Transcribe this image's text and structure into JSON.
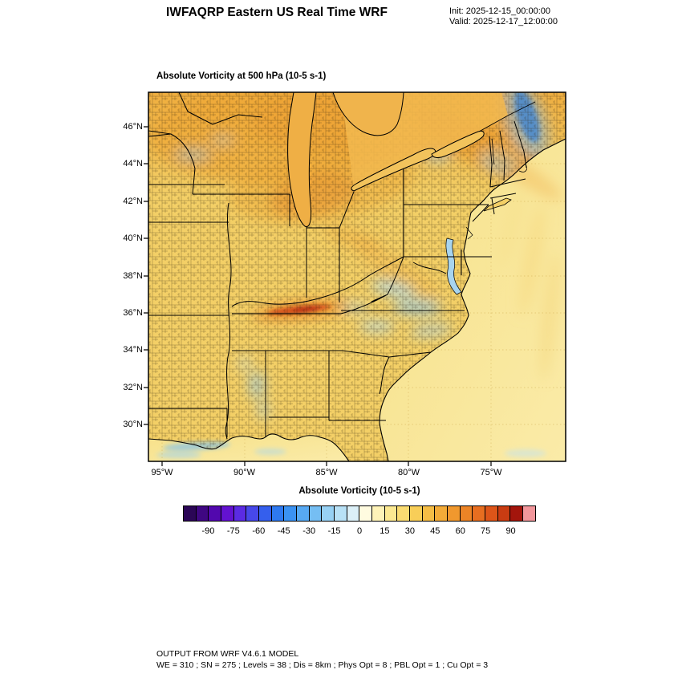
{
  "header": {
    "title": "IWFAQRP Eastern US Real Time WRF",
    "init": "Init: 2025-12-15_00:00:00",
    "valid": "Valid: 2025-12-17_12:00:00"
  },
  "plot": {
    "field_title": "Absolute Vorticity at 500 hPa  (10-5 s-1)",
    "colorbar_title": "Absolute Vorticity  (10-5 s-1)",
    "lat_ticks": [
      "46°N",
      "44°N",
      "42°N",
      "40°N",
      "38°N",
      "36°N",
      "34°N",
      "32°N",
      "30°N"
    ],
    "lon_ticks": [
      "95°W",
      "90°W",
      "85°W",
      "80°W",
      "75°W"
    ]
  },
  "footer": {
    "line1": "OUTPUT FROM WRF V4.6.1 MODEL",
    "line2": "WE = 310 ; SN = 275 ; Levels = 38 ; Dis = 8km ; Phys Opt = 8 ; PBL Opt = 1 ; Cu Opt = 3"
  },
  "chart_data": {
    "type": "heatmap",
    "title": "Absolute Vorticity at 500 hPa",
    "units": "10-5 s-1",
    "region": "Eastern US",
    "x": {
      "label": "longitude",
      "ticks_deg_west": [
        95,
        90,
        85,
        80,
        75
      ]
    },
    "y": {
      "label": "latitude",
      "ticks_deg_north": [
        46,
        44,
        42,
        40,
        38,
        36,
        34,
        32,
        30
      ]
    },
    "model_run": {
      "init": "2025-12-15_00:00:00",
      "valid": "2025-12-17_12:00:00"
    },
    "colorbar": {
      "title": "Absolute Vorticity  (10-5 s-1)",
      "value_min": -105,
      "value_max": 105,
      "interval": 7.5,
      "tick_values": [
        -90,
        -75,
        -60,
        -45,
        -30,
        -15,
        0,
        15,
        30,
        45,
        60,
        75,
        90
      ],
      "tick_labels": [
        "-90",
        "-75",
        "-60",
        "-45",
        "-30",
        "-15",
        "0",
        "15",
        "30",
        "45",
        "60",
        "75",
        "90"
      ],
      "colors": [
        "#2B0656",
        "#3F0782",
        "#5208AE",
        "#6312D1",
        "#5B2BE3",
        "#4748E9",
        "#355FED",
        "#2E79F0",
        "#3B92F2",
        "#57A9F3",
        "#75BEF3",
        "#97D1F4",
        "#B8E1F6",
        "#DCF0F8",
        "#FFFBE0",
        "#FEF3B8",
        "#FCE992",
        "#FADC72",
        "#F8CE58",
        "#F5BD45",
        "#F3AB38",
        "#F0982E",
        "#EC8426",
        "#E76E20",
        "#DD5519",
        "#C93C12",
        "#A3150C",
        "#F2969B"
      ]
    },
    "features": [
      "Broad positive vorticity (~15-45) over most of the eastern US (yellow/gold shading)",
      "Enhanced band ~45-75 across the upper Midwest, Great Lakes and into New England (orange)",
      "Narrow maximum exceeding 75 along the Kentucky/Tennessee border (red streak)",
      "Scattered weak negative pockets (0 to -30, light blue) over the mid-Atlantic, Carolinas/Virginia, Mississippi/Alabama and far Northeast",
      "Smooth weak positive field over the Atlantic with faint meridional streaks"
    ]
  }
}
